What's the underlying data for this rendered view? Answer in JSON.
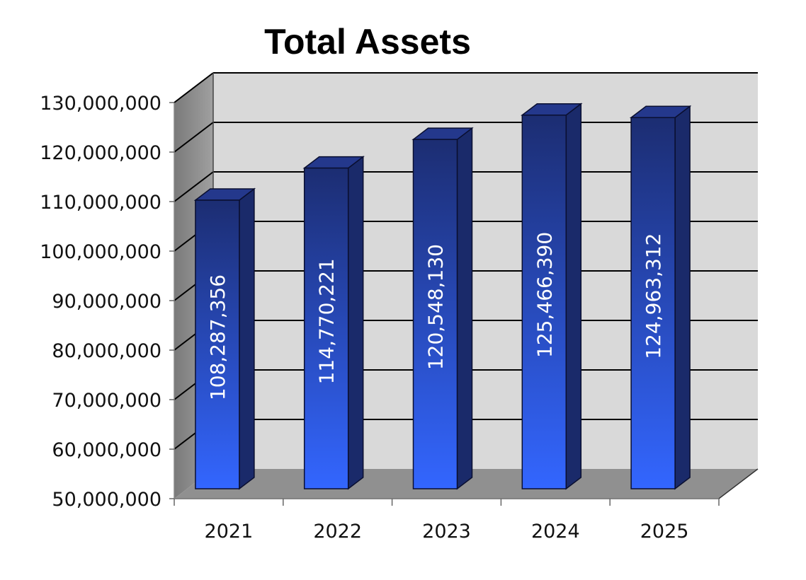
{
  "chart_data": {
    "type": "bar",
    "title": "Total Assets",
    "categories": [
      "2021",
      "2022",
      "2023",
      "2024",
      "2025"
    ],
    "values": [
      108287356,
      114770221,
      120548130,
      125466390,
      124963312
    ],
    "value_labels": [
      "108,287,356",
      "114,770,221",
      "120,548,130",
      "125,466,390",
      "124,963,312"
    ],
    "ylim": [
      50000000,
      130000000
    ],
    "yticks": [
      50000000,
      60000000,
      70000000,
      80000000,
      90000000,
      100000000,
      110000000,
      120000000,
      130000000
    ],
    "ytick_labels": [
      "50,000,000",
      "60,000,000",
      "70,000,000",
      "80,000,000",
      "90,000,000",
      "100,000,000",
      "110,000,000",
      "120,000,000",
      "130,000,000"
    ],
    "grid": true,
    "style": "3d",
    "colors": {
      "bar_front_top": "#1c2d72",
      "bar_front_bottom": "#3366ff",
      "bar_side": "#1a2a6a",
      "bar_top": "#24388c",
      "wall": "#d9d9d9",
      "side_wall": "#8c8c8c",
      "floor": "#909090",
      "grid": "#000000"
    }
  }
}
